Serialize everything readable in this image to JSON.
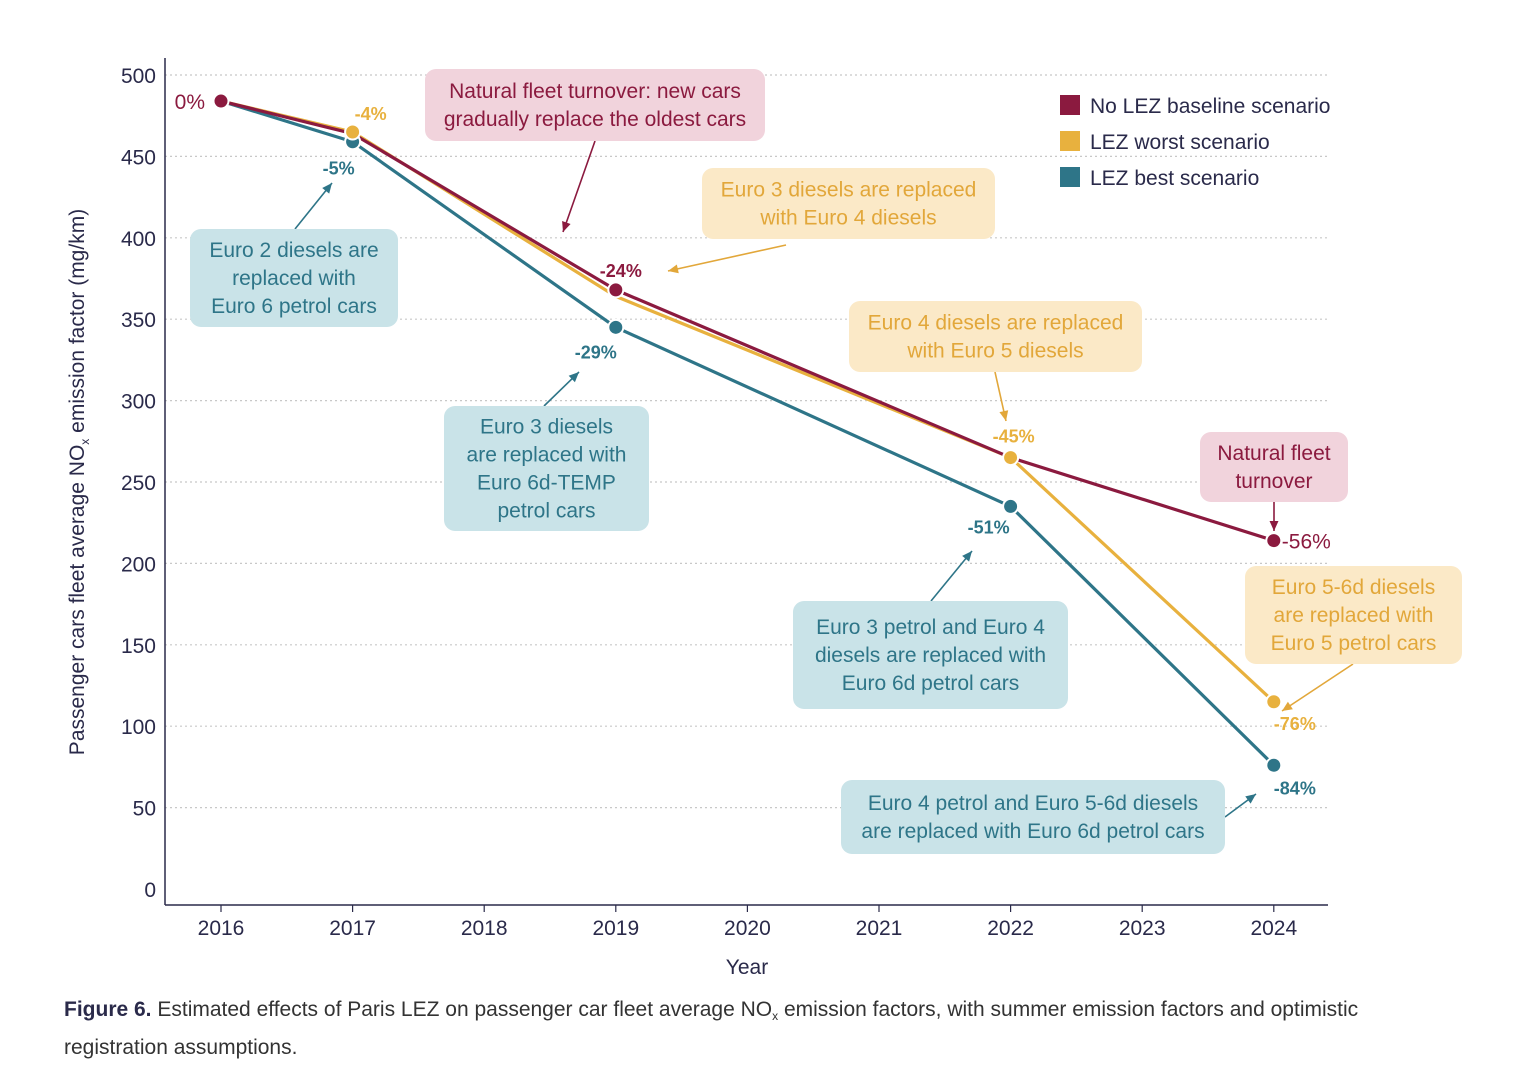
{
  "chart_data": {
    "type": "line",
    "xlabel": "Year",
    "ylabel": {
      "main": "Passenger cars fleet average NO",
      "sub": "x",
      "rest": " emission factor (mg/km)"
    },
    "x_ticks": [
      "2016",
      "2017",
      "2018",
      "2019",
      "2020",
      "2021",
      "2022",
      "2023",
      "2024"
    ],
    "y_ticks": [
      0,
      50,
      100,
      150,
      200,
      250,
      300,
      350,
      400,
      450,
      500
    ],
    "ylim": [
      0,
      500
    ],
    "grid": "horizontal-dotted",
    "legend_position": "top-right",
    "series": [
      {
        "name": "No LEZ baseline scenario",
        "color": "#8b1a3f",
        "points": [
          {
            "x": 2016,
            "y": 484,
            "label": "0%"
          },
          {
            "x": 2017,
            "y": 464,
            "label": ""
          },
          {
            "x": 2019,
            "y": 368,
            "label": "-24%"
          },
          {
            "x": 2022,
            "y": 265,
            "label": ""
          },
          {
            "x": 2024,
            "y": 214,
            "label": "-56%"
          }
        ]
      },
      {
        "name": "LEZ worst scenario",
        "color": "#e8b13e",
        "points": [
          {
            "x": 2016,
            "y": 484,
            "label": ""
          },
          {
            "x": 2017,
            "y": 465,
            "label": "-4%"
          },
          {
            "x": 2019,
            "y": 364,
            "label": ""
          },
          {
            "x": 2022,
            "y": 265,
            "label": "-45%"
          },
          {
            "x": 2024,
            "y": 115,
            "label": "-76%"
          }
        ]
      },
      {
        "name": "LEZ best scenario",
        "color": "#2e7588",
        "points": [
          {
            "x": 2016,
            "y": 484,
            "label": ""
          },
          {
            "x": 2017,
            "y": 459,
            "label": "-5%"
          },
          {
            "x": 2019,
            "y": 345,
            "label": "-29%"
          },
          {
            "x": 2022,
            "y": 235,
            "label": "-51%"
          },
          {
            "x": 2024,
            "y": 76,
            "label": "-84%"
          }
        ]
      }
    ],
    "annotations": [
      {
        "lines": [
          "Natural fleet turnover: new cars",
          "gradually replace the oldest cars"
        ],
        "style": "baseline"
      },
      {
        "lines": [
          "Euro 2 diesels are",
          "replaced with",
          "Euro 6 petrol cars"
        ],
        "style": "best"
      },
      {
        "lines": [
          "Euro 3 diesels are replaced",
          "with Euro 4 diesels"
        ],
        "style": "worst"
      },
      {
        "lines": [
          "Euro 3 diesels",
          "are replaced with",
          "Euro 6d-TEMP",
          "petrol cars"
        ],
        "style": "best"
      },
      {
        "lines": [
          "Euro 4 diesels are replaced",
          "with Euro 5 diesels"
        ],
        "style": "worst"
      },
      {
        "lines": [
          "Natural fleet",
          "turnover"
        ],
        "style": "baseline"
      },
      {
        "lines": [
          "Euro 3 petrol and Euro 4",
          "diesels are replaced with",
          "Euro 6d petrol cars"
        ],
        "style": "best"
      },
      {
        "lines": [
          "Euro 5-6d diesels",
          "are replaced with",
          "Euro 5 petrol cars"
        ],
        "style": "worst"
      },
      {
        "lines": [
          "Euro 4 petrol and Euro 5-6d diesels",
          "are replaced with Euro 6d petrol cars"
        ],
        "style": "best"
      }
    ]
  },
  "caption": {
    "label": "Figure 6.",
    "text_before": " Estimated effects of Paris LEZ on passenger car fleet average NO",
    "sub": "x",
    "text_after": " emission factors, with summer emission factors and optimistic registration assumptions."
  }
}
